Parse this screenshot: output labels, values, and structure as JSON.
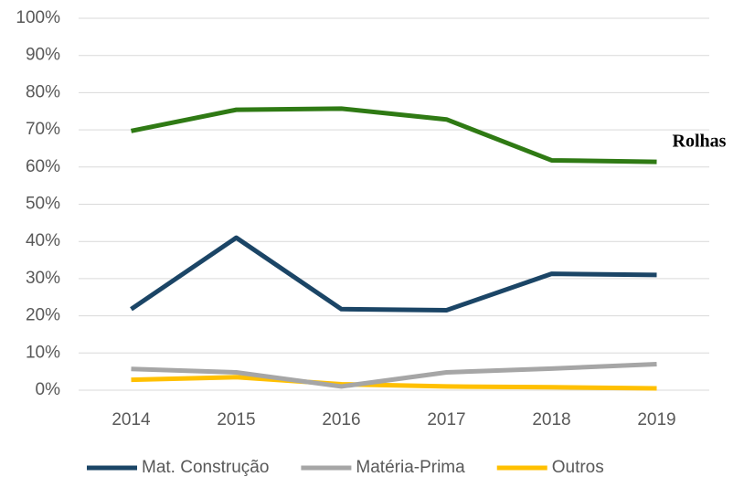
{
  "chart_data": {
    "type": "line",
    "categories": [
      "2014",
      "2015",
      "2016",
      "2017",
      "2018",
      "2019"
    ],
    "series": [
      {
        "name": "Rolhas",
        "color": "#2f7a14",
        "values": [
          69.7,
          75.4,
          75.7,
          72.8,
          61.8,
          61.4
        ],
        "direct_label": true
      },
      {
        "name": "Mat. Construção",
        "color": "#1b4566",
        "values": [
          21.8,
          41.0,
          21.8,
          21.5,
          31.3,
          31.0
        ]
      },
      {
        "name": "Matéria-Prima",
        "color": "#a6a6a6",
        "values": [
          5.7,
          4.8,
          1.0,
          4.8,
          5.8,
          7.0
        ]
      },
      {
        "name": "Outros",
        "color": "#ffc000",
        "values": [
          2.8,
          3.5,
          1.6,
          1.0,
          0.8,
          0.5
        ]
      }
    ],
    "ylim": [
      0,
      100
    ],
    "yticks": [
      {
        "value": 0,
        "label": "0%"
      },
      {
        "value": 10,
        "label": "10%"
      },
      {
        "value": 20,
        "label": "20%"
      },
      {
        "value": 30,
        "label": "30%"
      },
      {
        "value": 40,
        "label": "40%"
      },
      {
        "value": 50,
        "label": "50%"
      },
      {
        "value": 60,
        "label": "60%"
      },
      {
        "value": 70,
        "label": "70%"
      },
      {
        "value": 80,
        "label": "80%"
      },
      {
        "value": 90,
        "label": "90%"
      },
      {
        "value": 100,
        "label": "100%"
      }
    ],
    "grid": true,
    "legend": "bottom"
  }
}
